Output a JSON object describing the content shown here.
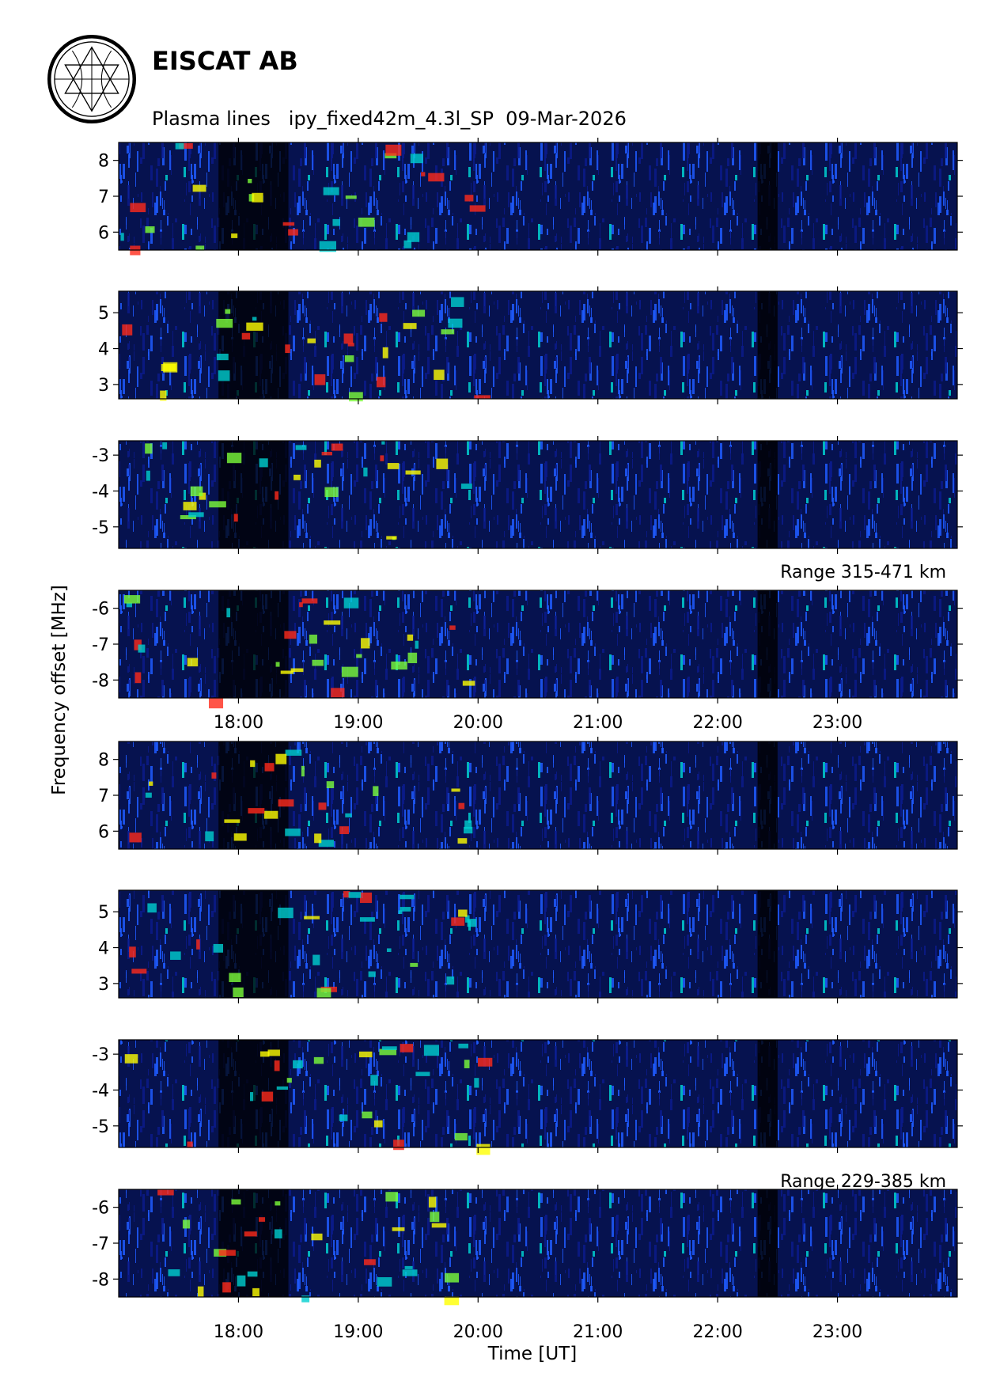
{
  "header": {
    "title": "EISCAT AB",
    "subtitle": "Plasma lines   ipy_fixed42m_4.3l_SP  09-Mar-2026"
  },
  "chart_data": [
    {
      "type": "heatmap",
      "group": "Range 315-471 km",
      "ylabel": "Frequency offset [MHz]",
      "xlim": [
        "17:00",
        "24:00"
      ],
      "x_ticks": [
        "18:00",
        "19:00",
        "20:00",
        "21:00",
        "22:00",
        "23:00"
      ],
      "colormap": [
        "#000000",
        "#0a1a8a",
        "#1e5aff",
        "#00d0d0",
        "#7cff3a",
        "#ffff00",
        "#ff2a1a",
        "#ff50ff",
        "#ffffff"
      ],
      "panels": [
        {
          "ylim": [
            5.5,
            8.5
          ],
          "y_ticks": [
            6,
            7,
            8
          ],
          "y_tick_labels": [
            "6",
            "7",
            "8"
          ]
        },
        {
          "ylim": [
            2.6,
            5.6
          ],
          "y_ticks": [
            3,
            4,
            5
          ],
          "y_tick_labels": [
            "3",
            "4",
            "5"
          ]
        },
        {
          "ylim": [
            -5.6,
            -2.6
          ],
          "y_ticks": [
            -5,
            -4,
            -3
          ],
          "y_tick_labels": [
            "-5",
            "-4",
            "-3"
          ]
        },
        {
          "ylim": [
            -8.5,
            -5.5
          ],
          "y_ticks": [
            -8,
            -7,
            -6
          ],
          "y_tick_labels": [
            "-8",
            "-7",
            "-6"
          ]
        }
      ]
    },
    {
      "type": "heatmap",
      "group": "Range 229-385 km",
      "xlabel": "Time [UT]",
      "ylabel": "Frequency offset [MHz]",
      "xlim": [
        "17:00",
        "24:00"
      ],
      "x_ticks": [
        "18:00",
        "19:00",
        "20:00",
        "21:00",
        "22:00",
        "23:00"
      ],
      "colormap": [
        "#000000",
        "#0a1a8a",
        "#1e5aff",
        "#00d0d0",
        "#7cff3a",
        "#ffff00",
        "#ff2a1a",
        "#ff50ff",
        "#ffffff"
      ],
      "panels": [
        {
          "ylim": [
            5.5,
            8.5
          ],
          "y_ticks": [
            6,
            7,
            8
          ],
          "y_tick_labels": [
            "6",
            "7",
            "8"
          ]
        },
        {
          "ylim": [
            2.6,
            5.6
          ],
          "y_ticks": [
            3,
            4,
            5
          ],
          "y_tick_labels": [
            "3",
            "4",
            "5"
          ]
        },
        {
          "ylim": [
            -5.6,
            -2.6
          ],
          "y_ticks": [
            -5,
            -4,
            -3
          ],
          "y_tick_labels": [
            "-5",
            "-4",
            "-3"
          ]
        },
        {
          "ylim": [
            -8.5,
            -5.5
          ],
          "y_ticks": [
            -8,
            -7,
            -6
          ],
          "y_tick_labels": [
            "-8",
            "-7",
            "-6"
          ]
        }
      ]
    }
  ]
}
